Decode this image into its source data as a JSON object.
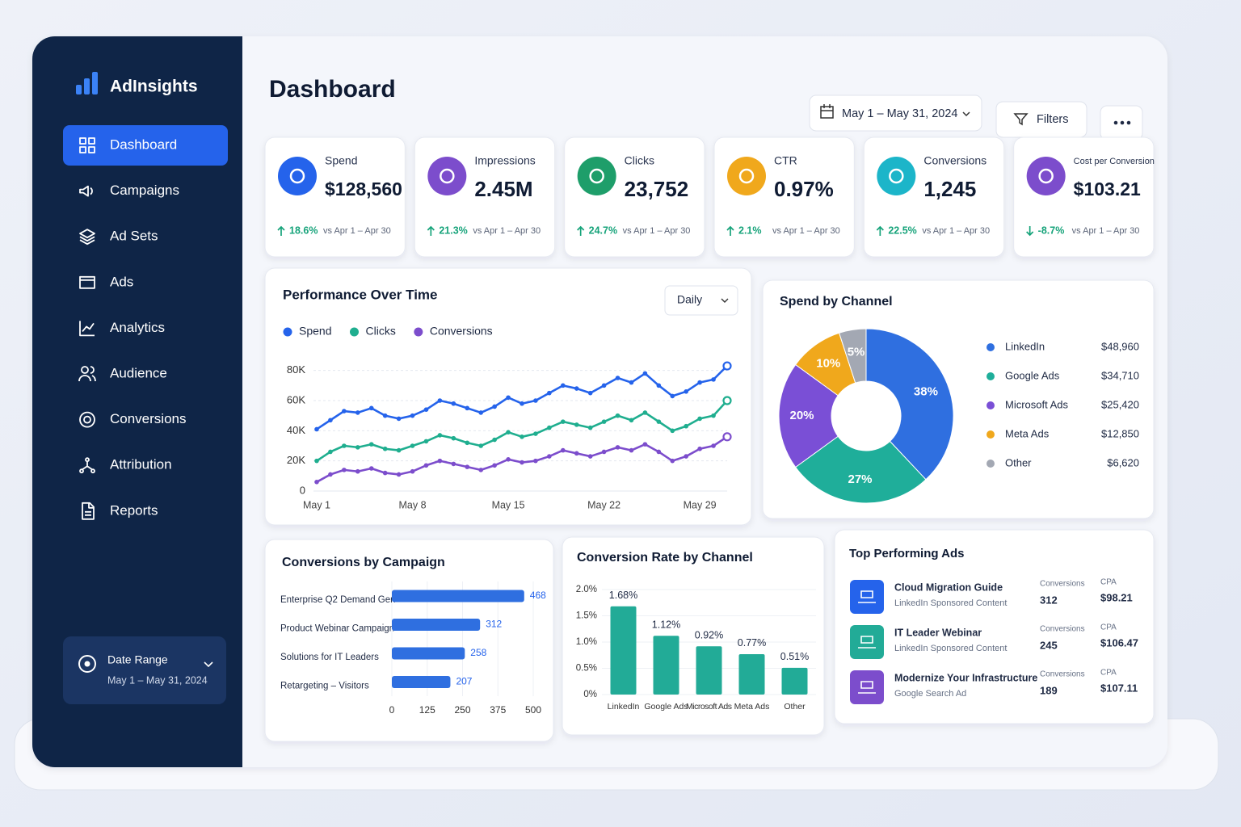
{
  "sidebar": {
    "brand": "AdInsights",
    "nav": [
      "Dashboard",
      "Campaigns",
      "Ad Sets",
      "Ads",
      "Analytics",
      "Audience",
      "Conversions",
      "Attribution",
      "Reports"
    ],
    "active": 0,
    "date_range_label": "Date Range",
    "date_range": "May 1 – May 31, 2024"
  },
  "header": {
    "title": "Dashboard",
    "date_picker": "May 1 – May 31, 2024",
    "filters": "Filters"
  },
  "kpis": [
    {
      "label": "Spend",
      "value": "$128,560",
      "change": "18.6%",
      "comparison": "vs Apr 1 – Apr 30",
      "color": "#2563eb"
    },
    {
      "label": "Impressions",
      "value": "2.45M",
      "change": "21.3%",
      "comparison": "vs Apr 1 – Apr 30",
      "color": "#7c4dcc"
    },
    {
      "label": "Clicks",
      "value": "23,752",
      "change": "24.7%",
      "comparison": "vs Apr 1 – Apr 30",
      "color": "#1e9e6a"
    },
    {
      "label": "CTR",
      "value": "0.97%",
      "change": "2.1%",
      "comparison": "vs Apr 1 – Apr 30",
      "color": "#f0a81c"
    },
    {
      "label": "Conversions",
      "value": "1,245",
      "change": "22.5%",
      "comparison": "vs Apr 1 – Apr 30",
      "color": "#1cb5c9"
    },
    {
      "label": "Cost per Conversion",
      "value": "$103.21",
      "change": "-8.7%",
      "comparison": "vs Apr 1 – Apr 30",
      "color": "#7c4dcc"
    }
  ],
  "chart_data": [
    {
      "type": "line",
      "title": "Performance Over Time",
      "granularity": "Daily",
      "categories": [
        "May 1",
        null,
        null,
        null,
        null,
        null,
        null,
        "May 8",
        null,
        null,
        null,
        null,
        null,
        null,
        "May 15",
        null,
        null,
        null,
        null,
        null,
        null,
        "May 22",
        null,
        null,
        null,
        null,
        null,
        null,
        "May 29",
        null,
        null
      ],
      "series": [
        {
          "name": "Spend",
          "color": "#2563eb",
          "values": [
            41000,
            47000,
            53000,
            52000,
            55000,
            50000,
            48000,
            50000,
            54000,
            60000,
            58000,
            55000,
            52000,
            56000,
            62000,
            58000,
            60000,
            65000,
            70000,
            68000,
            65000,
            70000,
            75000,
            72000,
            78000,
            70000,
            63000,
            66000,
            72000,
            74000,
            83000
          ]
        },
        {
          "name": "Clicks",
          "color": "#1fae8f",
          "values": [
            20000,
            26000,
            30000,
            29000,
            31000,
            28000,
            27000,
            30000,
            33000,
            37000,
            35000,
            32000,
            30000,
            34000,
            39000,
            36000,
            38000,
            42000,
            46000,
            44000,
            42000,
            46000,
            50000,
            47000,
            52000,
            46000,
            40000,
            43000,
            48000,
            50000,
            60000
          ]
        },
        {
          "name": "Conversions",
          "color": "#7c4dcc",
          "values": [
            6000,
            11000,
            14000,
            13000,
            15000,
            12000,
            11000,
            13000,
            17000,
            20000,
            18000,
            16000,
            14000,
            17000,
            21000,
            19000,
            20000,
            23000,
            27000,
            25000,
            23000,
            26000,
            29000,
            27000,
            31000,
            26000,
            20000,
            23000,
            28000,
            30000,
            36000
          ]
        }
      ],
      "ylim": [
        0,
        90000
      ],
      "yticks": [
        0,
        {
          "value": 20000,
          "label": "20K"
        },
        {
          "value": 40000,
          "label": "40K"
        },
        {
          "value": 60000,
          "label": "60K"
        },
        {
          "value": 80000,
          "label": "80K"
        }
      ],
      "grid": true,
      "legend": "top"
    },
    {
      "type": "pie",
      "title": "Spend by Channel",
      "categories": [
        "LinkedIn",
        "Google Ads",
        "Microsoft Ads",
        "Meta Ads",
        "Other"
      ],
      "values": [
        38,
        27,
        20,
        10,
        5
      ],
      "value_labels": [
        "38%",
        "27%",
        "20%",
        "10%",
        "5%"
      ],
      "amounts": [
        "$48,960",
        "$34,710",
        "$25,420",
        "$12,850",
        "$6,620"
      ],
      "colors": [
        "#2f6fe0",
        "#1fae9a",
        "#7a4fd6",
        "#f0a81c",
        "#a3a8b3"
      ],
      "donut": true,
      "legend": "right"
    },
    {
      "type": "hbar",
      "title": "Conversions by Campaign",
      "categories": [
        "Enterprise Q2 Demand Gen",
        "Product Webinar Campaign",
        "Solutions for IT Leaders",
        "Retargeting – Visitors"
      ],
      "values": [
        468,
        312,
        258,
        207
      ],
      "color": "#2f6fe0",
      "xlim": [
        0,
        500
      ],
      "xticks": [
        0,
        125,
        250,
        375,
        500
      ],
      "grid": true
    },
    {
      "type": "bar",
      "title": "Conversion Rate by Channel",
      "categories": [
        "LinkedIn",
        "Google Ads",
        "Microsoft Ads",
        "Meta Ads",
        "Other"
      ],
      "values": [
        1.68,
        1.12,
        0.92,
        0.77,
        0.51
      ],
      "value_labels": [
        "1.68%",
        "1.12%",
        "0.92%",
        "0.77%",
        "0.51%"
      ],
      "color": "#22ab97",
      "ylim": [
        0,
        2
      ],
      "yticks": [
        {
          "value": 0,
          "label": "0%"
        },
        {
          "value": 0.5,
          "label": "0.5%"
        },
        {
          "value": 1,
          "label": "1.0%"
        },
        {
          "value": 1.5,
          "label": "1.5%"
        },
        {
          "value": 2,
          "label": "2.0%"
        }
      ],
      "grid": true
    }
  ],
  "top_ads": {
    "title": "Top Performing Ads",
    "columns": [
      "Conversions",
      "CPA"
    ],
    "rows": [
      {
        "title": "Cloud Migration Guide",
        "subtitle": "LinkedIn Sponsored Content",
        "conversions": "312",
        "cpa": "$98.21",
        "color": "#2563eb"
      },
      {
        "title": "IT Leader Webinar",
        "subtitle": "LinkedIn Sponsored Content",
        "conversions": "245",
        "cpa": "$106.47",
        "color": "#22ab97"
      },
      {
        "title": "Modernize Your Infrastructure",
        "subtitle": "Google Search Ad",
        "conversions": "189",
        "cpa": "$107.11",
        "color": "#7c4dcc"
      }
    ]
  }
}
